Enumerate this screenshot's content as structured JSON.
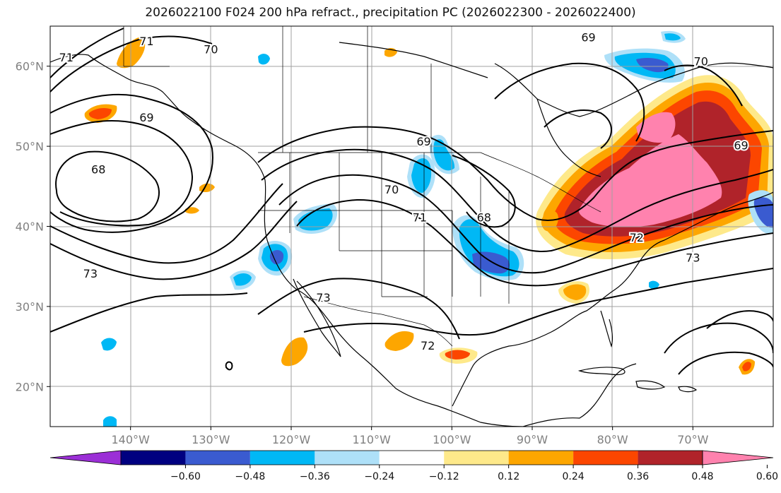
{
  "title": "2026022100 F024 200 hPa refract., precipitation PC (2026022300 - 2026022400)",
  "map": {
    "lat_ticks": [
      "60°N",
      "50°N",
      "40°N",
      "30°N",
      "20°N"
    ],
    "lon_ticks": [
      "140°W",
      "130°W",
      "120°W",
      "110°W",
      "100°W",
      "90°W",
      "80°W",
      "70°W"
    ],
    "extent": {
      "lon_min": -150,
      "lon_max": -60,
      "lat_min": 15,
      "lat_max": 65
    },
    "contour_labels": [
      {
        "text": "71",
        "lon": -148,
        "lat": 61
      },
      {
        "text": "71",
        "lon": -138,
        "lat": 63
      },
      {
        "text": "70",
        "lon": -130,
        "lat": 62
      },
      {
        "text": "69",
        "lon": -138,
        "lat": 53.5
      },
      {
        "text": "68",
        "lon": -144,
        "lat": 47
      },
      {
        "text": "73",
        "lon": -145,
        "lat": 34
      },
      {
        "text": "69",
        "lon": -103.5,
        "lat": 50.5
      },
      {
        "text": "70",
        "lon": -107.5,
        "lat": 44.5
      },
      {
        "text": "71",
        "lon": -104,
        "lat": 41
      },
      {
        "text": "68",
        "lon": -96,
        "lat": 41
      },
      {
        "text": "73",
        "lon": -116,
        "lat": 31
      },
      {
        "text": "72",
        "lon": -103,
        "lat": 25
      },
      {
        "text": "72",
        "lon": -77,
        "lat": 38.5
      },
      {
        "text": "73",
        "lon": -70,
        "lat": 36
      },
      {
        "text": "69",
        "lon": -64,
        "lat": 50
      },
      {
        "text": "70",
        "lon": -69,
        "lat": 60.5
      },
      {
        "text": "69",
        "lon": -83,
        "lat": 63.5
      }
    ]
  },
  "colorbar": {
    "tick_labels": [
      "−0.60",
      "−0.48",
      "−0.36",
      "−0.24",
      "−0.12",
      "0.12",
      "0.24",
      "0.36",
      "0.48",
      "0.60"
    ],
    "colors": [
      "#9b2fd6",
      "#000080",
      "#3a5bd0",
      "#00b8f5",
      "#aee0f8",
      "#ffffff",
      "#fee98a",
      "#fda600",
      "#fc4600",
      "#b0232a",
      "#ff82ae"
    ]
  }
}
